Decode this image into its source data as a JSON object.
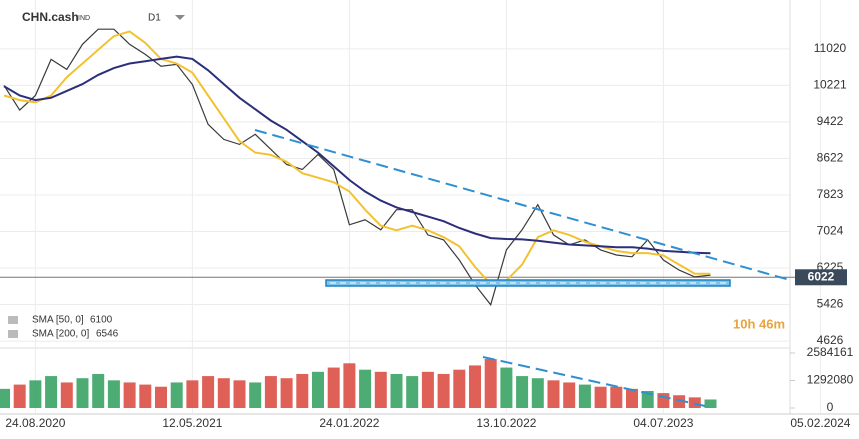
{
  "symbol": "CHN.cash",
  "market": "IND",
  "timeframe": "D1",
  "timer": "10h 46m",
  "chart_data": {
    "type": "line",
    "categories": [
      null,
      null,
      "24.08.2020",
      null,
      null,
      null,
      null,
      null,
      null,
      null,
      null,
      null,
      "12.05.2021",
      null,
      null,
      null,
      null,
      null,
      null,
      null,
      null,
      null,
      "24.01.2022",
      null,
      null,
      null,
      null,
      null,
      null,
      null,
      null,
      null,
      "13.10.2022",
      null,
      null,
      null,
      null,
      null,
      null,
      null,
      null,
      null,
      "04.07.2023",
      null,
      null,
      null,
      null,
      null,
      null,
      null,
      null,
      null,
      "05.02.2024"
    ],
    "last_price": 6022,
    "series": [
      {
        "name": "CHN.cash",
        "color": "#3a3a3a",
        "values": [
          10221,
          9680,
          10000,
          10790,
          10570,
          11120,
          11450,
          11450,
          11120,
          10900,
          10640,
          10680,
          10240,
          9370,
          9040,
          8930,
          9150,
          8820,
          8490,
          8380,
          8710,
          8380,
          7170,
          7280,
          7060,
          7500,
          7500,
          6950,
          6840,
          6400,
          5860,
          5420,
          6620,
          7060,
          7610,
          6950,
          6730,
          6840,
          6620,
          6510,
          6470,
          6840,
          6400,
          6180,
          6030,
          6070,
          null,
          null,
          null,
          null,
          null,
          null,
          null
        ]
      },
      {
        "name": "SMA [50, 0]",
        "legend_value": 6100,
        "color": "#f2c230",
        "values": [
          10000,
          9900,
          9850,
          10000,
          10400,
          10700,
          11000,
          11300,
          11400,
          11150,
          10800,
          10700,
          10500,
          10000,
          9500,
          9000,
          8750,
          8700,
          8550,
          8300,
          8200,
          8100,
          7900,
          7500,
          7150,
          7050,
          7150,
          7050,
          6900,
          6700,
          6250,
          5870,
          5950,
          6300,
          6900,
          7050,
          6950,
          6800,
          6700,
          6600,
          6550,
          6550,
          6500,
          6300,
          6100,
          6100,
          null,
          null,
          null,
          null,
          null,
          null,
          null
        ]
      },
      {
        "name": "SMA [200, 0]",
        "legend_value": 6546,
        "color": "#2b2f7a",
        "values": [
          10200,
          10000,
          9900,
          9950,
          10100,
          10250,
          10450,
          10600,
          10700,
          10750,
          10800,
          10850,
          10800,
          10550,
          10250,
          9950,
          9700,
          9450,
          9250,
          9000,
          8750,
          8450,
          8150,
          7900,
          7700,
          7550,
          7450,
          7350,
          7250,
          7100,
          6980,
          6880,
          6860,
          6850,
          6820,
          6780,
          6740,
          6720,
          6700,
          6680,
          6680,
          6650,
          6600,
          6580,
          6560,
          6546,
          null,
          null,
          null,
          null,
          null,
          null,
          null
        ]
      }
    ],
    "ylim": [
      4540,
      11980
    ],
    "yticks": [
      11020,
      10221,
      9422,
      8622,
      7823,
      7024,
      6225,
      5426,
      4626
    ],
    "volume": {
      "up_color": "#2e9e5b",
      "down_color": "#d9443a",
      "values": [
        900000,
        1100000,
        1300000,
        1500000,
        1200000,
        1400000,
        1600000,
        1300000,
        1200000,
        1100000,
        1000000,
        1200000,
        1300000,
        1500000,
        1400000,
        1300000,
        1200000,
        1500000,
        1400000,
        1600000,
        1700000,
        1900000,
        2100000,
        1800000,
        1700000,
        1600000,
        1500000,
        1700000,
        1600000,
        1800000,
        2000000,
        2300000,
        1900000,
        1500000,
        1400000,
        1300000,
        1200000,
        1100000,
        1000000,
        1000000,
        900000,
        800000,
        700000,
        600000,
        500000,
        400000,
        null,
        null,
        null,
        null,
        null,
        null,
        null
      ],
      "ylim": [
        0,
        2584161
      ],
      "yticks": [
        2584161,
        1292080,
        0
      ]
    },
    "grid": true
  }
}
